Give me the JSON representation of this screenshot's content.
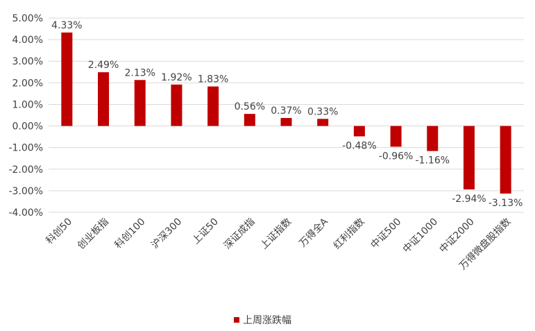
{
  "chart_data": {
    "type": "bar",
    "categories": [
      "科创50",
      "创业板指",
      "科创100",
      "沪深300",
      "上证50",
      "深证成指",
      "上证指数",
      "万得全A",
      "红利指数",
      "中证500",
      "中证1000",
      "中证2000",
      "万得微盘股指数"
    ],
    "series": [
      {
        "name": "上周涨跌幅",
        "values": [
          4.33,
          2.49,
          2.13,
          1.92,
          1.83,
          0.56,
          0.37,
          0.33,
          -0.48,
          -0.96,
          -1.16,
          -2.94,
          -3.13
        ],
        "labels": [
          "4.33%",
          "2.49%",
          "2.13%",
          "1.92%",
          "1.83%",
          "0.56%",
          "0.37%",
          "0.33%",
          "-0.48%",
          "-0.96%",
          "-1.16%",
          "-2.94%",
          "-3.13%"
        ]
      }
    ],
    "y_ticks": [
      "5.00%",
      "4.00%",
      "3.00%",
      "2.00%",
      "1.00%",
      "0.00%",
      "-1.00%",
      "-2.00%",
      "-3.00%",
      "-4.00%"
    ],
    "ylim": [
      -4,
      5
    ],
    "grid": true,
    "legend_position": "bottom",
    "bar_color": "#C00000"
  }
}
